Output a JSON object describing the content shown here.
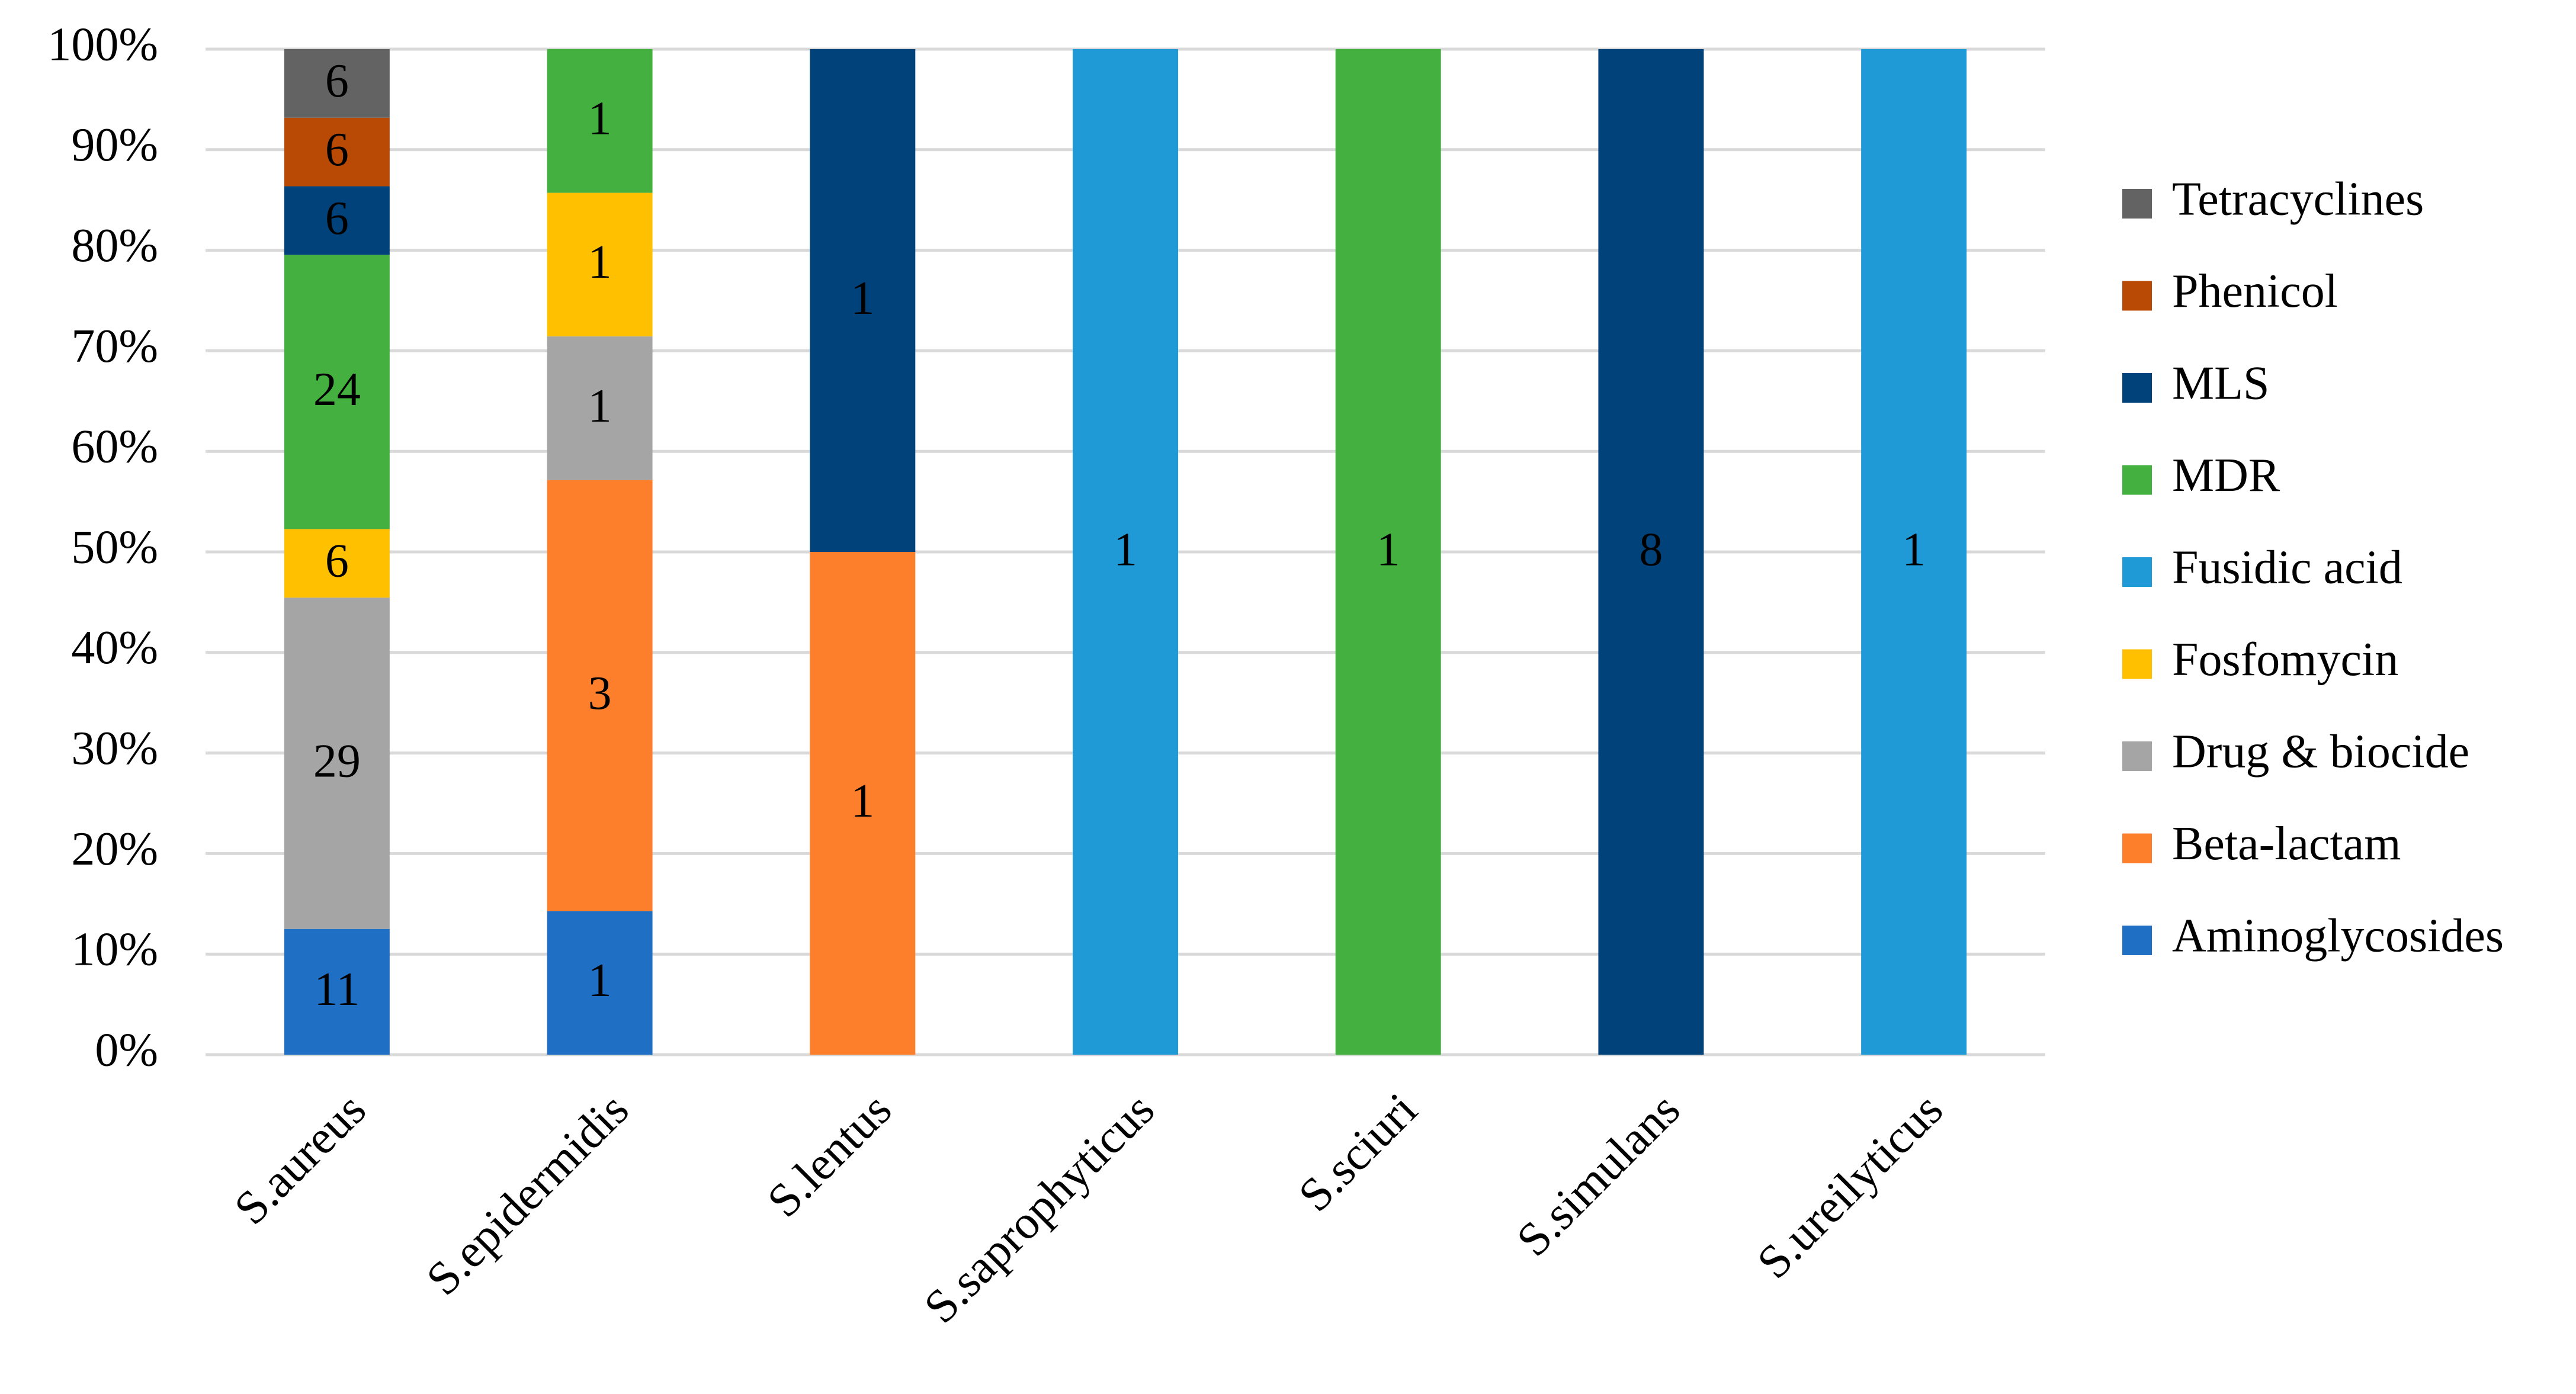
{
  "chart_data": {
    "type": "bar",
    "stacked": "percent",
    "categories": [
      "S.aureus",
      "S.epidermidis",
      "S.lentus",
      "S.saprophyticus",
      "S.sciuri",
      "S.simulans",
      "S.ureilyticus"
    ],
    "series": [
      {
        "name": "Aminoglycosides",
        "color": "#1f6fc5",
        "values": [
          11,
          1,
          null,
          null,
          null,
          null,
          null
        ]
      },
      {
        "name": "Beta-lactam",
        "color": "#fd7f2c",
        "values": [
          null,
          3,
          1,
          null,
          null,
          null,
          null
        ]
      },
      {
        "name": "Drug & biocide",
        "color": "#a5a5a5",
        "values": [
          29,
          1,
          null,
          null,
          null,
          null,
          null
        ]
      },
      {
        "name": "Fosfomycin",
        "color": "#ffc000",
        "values": [
          6,
          1,
          null,
          null,
          null,
          null,
          null
        ]
      },
      {
        "name": "Fusidic acid",
        "color": "#1f9ad6",
        "values": [
          null,
          null,
          null,
          1,
          null,
          null,
          1
        ]
      },
      {
        "name": "MDR",
        "color": "#43b040",
        "values": [
          24,
          1,
          null,
          null,
          1,
          null,
          null
        ]
      },
      {
        "name": "MLS",
        "color": "#004279",
        "values": [
          6,
          null,
          1,
          null,
          null,
          8,
          null
        ]
      },
      {
        "name": "Phenicol",
        "color": "#b84a06",
        "values": [
          6,
          null,
          null,
          null,
          null,
          null,
          null
        ]
      },
      {
        "name": "Tetracyclines",
        "color": "#636363",
        "values": [
          6,
          null,
          null,
          null,
          null,
          null,
          null
        ]
      }
    ],
    "ylim": [
      0,
      100
    ],
    "yticks": [
      {
        "value": 0,
        "label": "0%"
      },
      {
        "value": 10,
        "label": "10%"
      },
      {
        "value": 20,
        "label": "20%"
      },
      {
        "value": 30,
        "label": "30%"
      },
      {
        "value": 40,
        "label": "40%"
      },
      {
        "value": 50,
        "label": "50%"
      },
      {
        "value": 60,
        "label": "60%"
      },
      {
        "value": 70,
        "label": "70%"
      },
      {
        "value": 80,
        "label": "80%"
      },
      {
        "value": 90,
        "label": "90%"
      },
      {
        "value": 100,
        "label": "100%"
      }
    ],
    "grid": true,
    "legend": "right"
  }
}
